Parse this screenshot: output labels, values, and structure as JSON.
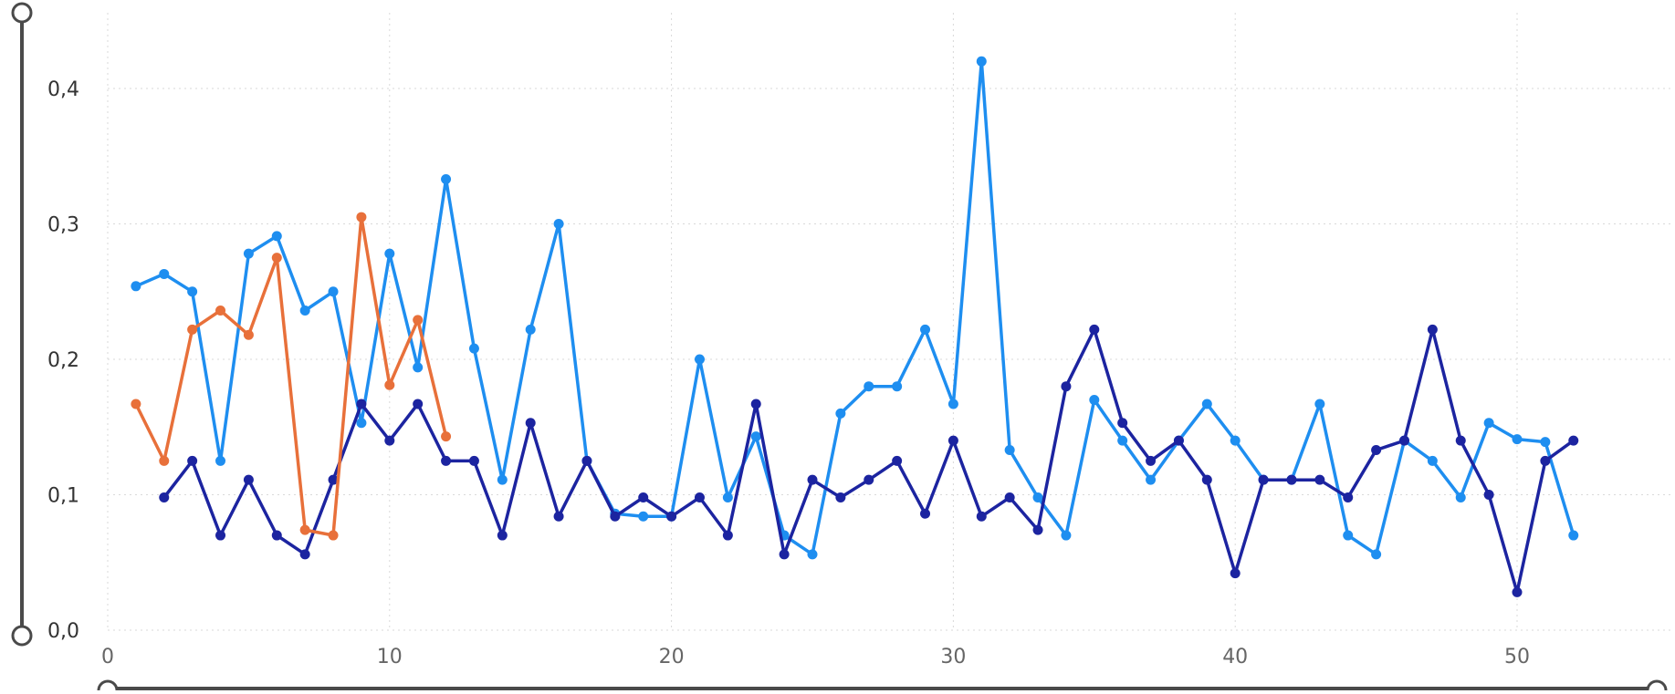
{
  "chart_data": {
    "type": "line",
    "title": "",
    "xlabel": "",
    "ylabel": "",
    "xlim": [
      0,
      55.5
    ],
    "ylim": [
      0,
      0.45
    ],
    "x_ticks": [
      0,
      10,
      20,
      30,
      40,
      50
    ],
    "x_tick_labels": [
      "0",
      "10",
      "20",
      "30",
      "40",
      "50"
    ],
    "y_ticks": [
      0,
      0.1,
      0.2,
      0.3,
      0.4
    ],
    "y_tick_labels": [
      "0,0",
      "0,1",
      "0,2",
      "0,3",
      "0,4"
    ],
    "grid": true,
    "legend": "none",
    "series": [
      {
        "color": "#1E8EF0",
        "x": [
          1,
          2,
          3,
          4,
          5,
          6,
          7,
          8,
          9,
          10,
          11,
          12,
          13,
          14,
          15,
          16,
          17,
          18,
          19,
          20,
          21,
          22,
          23,
          24,
          25,
          26,
          27,
          28,
          29,
          30,
          31,
          32,
          33,
          34,
          35,
          36,
          37,
          38,
          39,
          40,
          41,
          42,
          43,
          44,
          45,
          46,
          47,
          48,
          49,
          50,
          51,
          52
        ],
        "values": [
          0.254,
          0.263,
          0.25,
          0.125,
          0.278,
          0.291,
          0.236,
          0.25,
          0.153,
          0.278,
          0.194,
          0.333,
          0.208,
          0.111,
          0.222,
          0.3,
          0.125,
          0.086,
          0.084,
          0.084,
          0.2,
          0.098,
          0.143,
          0.07,
          0.056,
          0.16,
          0.18,
          0.18,
          0.222,
          0.167,
          0.42,
          0.133,
          0.098,
          0.07,
          0.17,
          0.14,
          0.111,
          0.14,
          0.167,
          0.14,
          0.111,
          0.111,
          0.167,
          0.07,
          0.056,
          0.14,
          0.125,
          0.098,
          0.153,
          0.141,
          0.139,
          0.07
        ]
      },
      {
        "color": "#1C24A0",
        "x": [
          2,
          3,
          4,
          5,
          6,
          7,
          8,
          9,
          10,
          11,
          12,
          13,
          14,
          15,
          16,
          17,
          18,
          19,
          20,
          21,
          22,
          23,
          24,
          25,
          26,
          27,
          28,
          29,
          30,
          31,
          32,
          33,
          34,
          35,
          36,
          37,
          38,
          39,
          40,
          41,
          42,
          43,
          44,
          45,
          46,
          47,
          48,
          49,
          50,
          51,
          52
        ],
        "values": [
          0.098,
          0.125,
          0.07,
          0.111,
          0.07,
          0.056,
          0.111,
          0.167,
          0.14,
          0.167,
          0.125,
          0.125,
          0.07,
          0.153,
          0.084,
          0.125,
          0.084,
          0.098,
          0.084,
          0.098,
          0.07,
          0.167,
          0.056,
          0.111,
          0.098,
          0.111,
          0.125,
          0.086,
          0.14,
          0.084,
          0.098,
          0.074,
          0.18,
          0.222,
          0.153,
          0.125,
          0.14,
          0.111,
          0.042,
          0.111,
          0.111,
          0.111,
          0.098,
          0.133,
          0.14,
          0.222,
          0.14,
          0.1,
          0.028,
          0.125,
          0.14
        ]
      },
      {
        "color": "#E8703A",
        "x": [
          1,
          2,
          3,
          4,
          5,
          6,
          7,
          8,
          9,
          10,
          11,
          12
        ],
        "values": [
          0.167,
          0.125,
          0.222,
          0.236,
          0.218,
          0.275,
          0.074,
          0.07,
          0.305,
          0.181,
          0.229,
          0.143
        ]
      }
    ]
  }
}
